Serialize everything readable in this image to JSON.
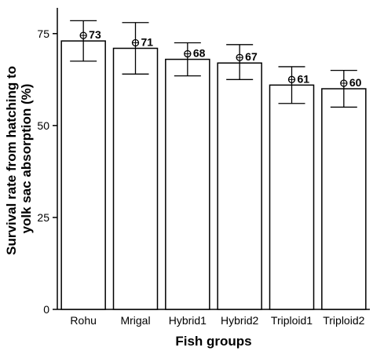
{
  "chart_data": {
    "type": "bar",
    "categories": [
      "Rohu",
      "Mrigal",
      "Hybrid1",
      "Hybrid2",
      "Triploid1",
      "Triploid2"
    ],
    "values": [
      73,
      71,
      68,
      67,
      61,
      60
    ],
    "data_labels": [
      "73",
      "71",
      "68",
      "67",
      "61",
      "60"
    ],
    "means": [
      74.5,
      72.5,
      69.5,
      68.5,
      62.5,
      61.5
    ],
    "error_high": [
      78.5,
      78.0,
      72.5,
      72.0,
      66.0,
      65.0
    ],
    "error_low": [
      67.5,
      64.0,
      63.5,
      62.5,
      56.0,
      55.0
    ],
    "xlabel": "Fish groups",
    "ylabel_lines": [
      "Survival rate from hatching to",
      "yolk sac absorption (%)"
    ],
    "ylim": [
      0,
      82
    ],
    "yticks": [
      0,
      25,
      50,
      75
    ],
    "ytick_labels": [
      "0",
      "25",
      "50",
      "75"
    ],
    "grid": false,
    "legend": "none",
    "colors": {
      "bar_fill": "#ffffff",
      "stroke": "#000000"
    }
  }
}
